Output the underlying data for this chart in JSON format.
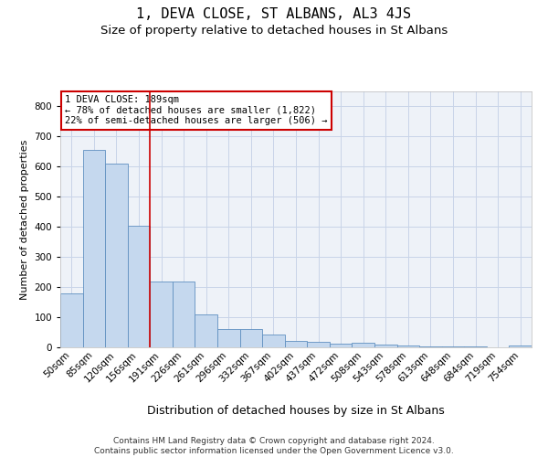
{
  "title": "1, DEVA CLOSE, ST ALBANS, AL3 4JS",
  "subtitle": "Size of property relative to detached houses in St Albans",
  "xlabel": "Distribution of detached houses by size in St Albans",
  "ylabel": "Number of detached properties",
  "categories": [
    "50sqm",
    "85sqm",
    "120sqm",
    "156sqm",
    "191sqm",
    "226sqm",
    "261sqm",
    "296sqm",
    "332sqm",
    "367sqm",
    "402sqm",
    "437sqm",
    "472sqm",
    "508sqm",
    "543sqm",
    "578sqm",
    "613sqm",
    "648sqm",
    "684sqm",
    "719sqm",
    "754sqm"
  ],
  "values": [
    178,
    655,
    610,
    403,
    218,
    218,
    108,
    62,
    62,
    42,
    20,
    17,
    13,
    15,
    8,
    5,
    4,
    2,
    2,
    1,
    7
  ],
  "bar_color": "#c5d8ee",
  "bar_edge_color": "#6090c0",
  "vline_position": 3.5,
  "vline_color": "#cc0000",
  "annotation_text": "1 DEVA CLOSE: 189sqm\n← 78% of detached houses are smaller (1,822)\n22% of semi-detached houses are larger (506) →",
  "annotation_box_facecolor": "white",
  "annotation_box_edgecolor": "#cc0000",
  "ylim": [
    0,
    850
  ],
  "yticks": [
    0,
    100,
    200,
    300,
    400,
    500,
    600,
    700,
    800
  ],
  "grid_color": "#c8d4e8",
  "background_color": "#eef2f8",
  "footer_line1": "Contains HM Land Registry data © Crown copyright and database right 2024.",
  "footer_line2": "Contains public sector information licensed under the Open Government Licence v3.0.",
  "title_fontsize": 11,
  "subtitle_fontsize": 9.5,
  "xlabel_fontsize": 9,
  "ylabel_fontsize": 8,
  "tick_fontsize": 7.5,
  "annotation_fontsize": 7.5,
  "footer_fontsize": 6.5
}
